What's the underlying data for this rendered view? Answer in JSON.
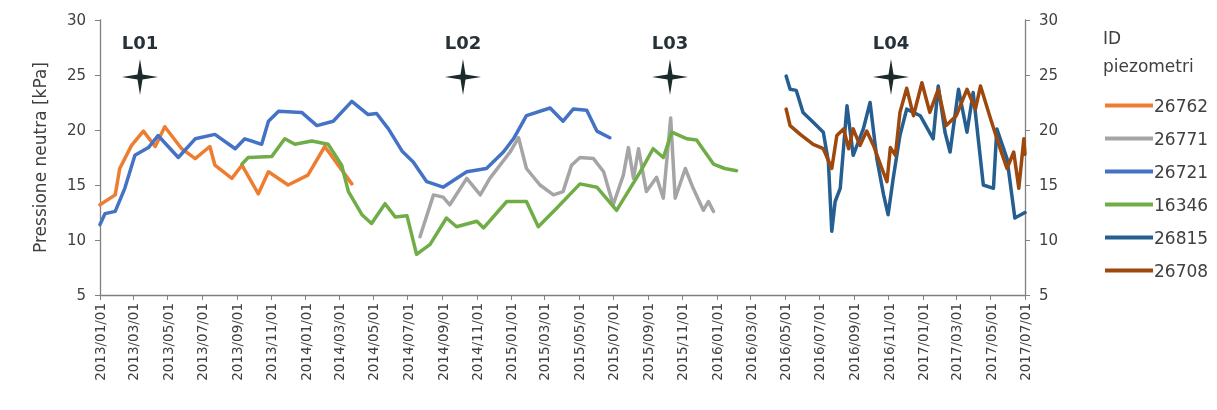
{
  "chart_data": {
    "type": "line",
    "ylabel": "Pressione neutra [kPa]",
    "legend_title": "ID piezometri",
    "legend": "right",
    "grid": false,
    "xlim": [
      "2013-01-01",
      "2017-07-01"
    ],
    "xticks": [
      {
        "value": "2013-01-01",
        "label": "2013/01/01"
      },
      {
        "value": "2013-03-01",
        "label": "2013/03/01"
      },
      {
        "value": "2013-05-01",
        "label": "2013/05/01"
      },
      {
        "value": "2013-07-01",
        "label": "2013/07/01"
      },
      {
        "value": "2013-09-01",
        "label": "2013/09/01"
      },
      {
        "value": "2013-11-01",
        "label": "2013/11/01"
      },
      {
        "value": "2014-01-01",
        "label": "2014/01/01"
      },
      {
        "value": "2014-03-01",
        "label": "2014/03/01"
      },
      {
        "value": "2014-05-01",
        "label": "2014/05/01"
      },
      {
        "value": "2014-07-01",
        "label": "2014/07/01"
      },
      {
        "value": "2014-09-01",
        "label": "2014/09/01"
      },
      {
        "value": "2014-11-01",
        "label": "2014/11/01"
      },
      {
        "value": "2015-01-01",
        "label": "2015/01/01"
      },
      {
        "value": "2015-03-01",
        "label": "2015/03/01"
      },
      {
        "value": "2015-05-01",
        "label": "2015/05/01"
      },
      {
        "value": "2015-07-01",
        "label": "2015/07/01"
      },
      {
        "value": "2015-09-01",
        "label": "2015/09/01"
      },
      {
        "value": "2015-11-01",
        "label": "2015/11/01"
      },
      {
        "value": "2016-01-01",
        "label": "2016/01/01"
      },
      {
        "value": "2016-03-01",
        "label": "2016/03/01"
      },
      {
        "value": "2016-05-01",
        "label": "2016/05/01"
      },
      {
        "value": "2016-07-01",
        "label": "2016/07/01"
      },
      {
        "value": "2016-09-01",
        "label": "2016/09/01"
      },
      {
        "value": "2016-11-01",
        "label": "2016/11/01"
      },
      {
        "value": "2017-01-01",
        "label": "2017/01/01"
      },
      {
        "value": "2017-03-01",
        "label": "2017/03/01"
      },
      {
        "value": "2017-05-01",
        "label": "2017/05/01"
      },
      {
        "value": "2017-07-01",
        "label": "2017/07/01"
      }
    ],
    "ylim": [
      5,
      30
    ],
    "yticks": [
      5,
      10,
      15,
      20,
      25,
      30
    ],
    "y2lim": [
      5,
      30
    ],
    "y2ticks": [
      5,
      10,
      15,
      20,
      25,
      30
    ],
    "annotations": [
      "L01",
      "L02",
      "L03",
      "L04"
    ],
    "series": [
      {
        "name": "26762",
        "color": "#ed7d31",
        "x": [
          "2013-01-01",
          "2013-01-28",
          "2013-02-05",
          "2013-02-26",
          "2013-03-19",
          "2013-04-09",
          "2013-04-26",
          "2013-05-26",
          "2013-06-19",
          "2013-07-15",
          "2013-07-24",
          "2013-08-23",
          "2013-09-10",
          "2013-10-09",
          "2013-10-27",
          "2013-12-01",
          "2014-01-05",
          "2014-02-04",
          "2014-02-28",
          "2014-03-24"
        ],
        "values": [
          13.2,
          14.1,
          16.5,
          18.6,
          19.9,
          18.5,
          20.3,
          18.3,
          17.4,
          18.5,
          16.8,
          15.6,
          16.8,
          14.2,
          16.2,
          15.0,
          15.9,
          18.5,
          16.8,
          15.1
        ]
      },
      {
        "name": "26771",
        "color": "#a5a5a5",
        "x": [
          "2014-07-23",
          "2014-08-16",
          "2014-09-02",
          "2014-09-14",
          "2014-10-14",
          "2014-11-07",
          "2014-11-24",
          "2014-12-30",
          "2015-01-14",
          "2015-01-28",
          "2015-02-21",
          "2015-03-17",
          "2015-04-03",
          "2015-04-18",
          "2015-05-03",
          "2015-05-27",
          "2015-06-14",
          "2015-07-01",
          "2015-07-19",
          "2015-07-28",
          "2015-08-06",
          "2015-08-15",
          "2015-08-29",
          "2015-09-16",
          "2015-09-28",
          "2015-10-11",
          "2015-10-19",
          "2015-11-06",
          "2015-11-20",
          "2015-12-08",
          "2015-12-17",
          "2015-12-26"
        ],
        "values": [
          10.3,
          14.1,
          13.9,
          13.2,
          15.6,
          14.1,
          15.6,
          18.0,
          19.3,
          16.5,
          15.0,
          14.1,
          14.4,
          16.8,
          17.5,
          17.4,
          16.2,
          13.2,
          15.9,
          18.4,
          15.6,
          18.3,
          14.4,
          15.7,
          13.8,
          21.1,
          13.8,
          16.5,
          14.7,
          12.7,
          13.5,
          12.6
        ]
      },
      {
        "name": "26721",
        "color": "#4472c4",
        "x": [
          "2013-01-01",
          "2013-01-10",
          "2013-01-28",
          "2013-02-14",
          "2013-03-04",
          "2013-03-28",
          "2013-04-14",
          "2013-05-20",
          "2013-06-19",
          "2013-07-24",
          "2013-08-29",
          "2013-09-15",
          "2013-10-15",
          "2013-10-27",
          "2013-11-14",
          "2013-12-25",
          "2014-01-21",
          "2014-02-19",
          "2014-03-24",
          "2014-04-22",
          "2014-05-07",
          "2014-05-28",
          "2014-06-21",
          "2014-07-11",
          "2014-08-04",
          "2014-09-02",
          "2014-10-14",
          "2014-11-18",
          "2014-12-18",
          "2015-01-05",
          "2015-01-28",
          "2015-03-11",
          "2015-04-03",
          "2015-04-21",
          "2015-05-15",
          "2015-06-02",
          "2015-06-25"
        ],
        "values": [
          11.4,
          12.4,
          12.6,
          14.7,
          17.7,
          18.4,
          19.5,
          17.5,
          19.2,
          19.6,
          18.3,
          19.2,
          18.7,
          20.8,
          21.7,
          21.6,
          20.4,
          20.8,
          22.6,
          21.4,
          21.5,
          20.1,
          18.1,
          17.1,
          15.3,
          14.8,
          16.2,
          16.5,
          18.0,
          19.2,
          21.3,
          22.0,
          20.8,
          21.9,
          21.8,
          19.9,
          19.3
        ]
      },
      {
        "name": "16346",
        "color": "#70ad47",
        "x": [
          "2013-09-10",
          "2013-09-21",
          "2013-11-02",
          "2013-11-25",
          "2013-12-13",
          "2014-01-12",
          "2014-02-10",
          "2014-03-06",
          "2014-03-18",
          "2014-04-11",
          "2014-04-28",
          "2014-05-22",
          "2014-06-09",
          "2014-06-30",
          "2014-07-17",
          "2014-08-10",
          "2014-09-08",
          "2014-09-26",
          "2014-11-01",
          "2014-11-13",
          "2014-12-24",
          "2015-01-28",
          "2015-02-18",
          "2015-03-23",
          "2015-05-03",
          "2015-06-02",
          "2015-07-07",
          "2015-08-18",
          "2015-09-10",
          "2015-09-28",
          "2015-10-13",
          "2015-11-09",
          "2015-11-26",
          "2015-12-26",
          "2016-01-15",
          "2016-02-05"
        ],
        "values": [
          16.9,
          17.5,
          17.6,
          19.2,
          18.7,
          19.0,
          18.7,
          16.8,
          14.4,
          12.3,
          11.5,
          13.3,
          12.1,
          12.2,
          8.7,
          9.6,
          12.0,
          11.2,
          11.7,
          11.1,
          13.5,
          13.5,
          11.2,
          12.9,
          15.1,
          14.8,
          12.7,
          16.2,
          18.3,
          17.5,
          19.8,
          19.2,
          19.1,
          16.9,
          16.5,
          16.3
        ]
      },
      {
        "name": "26815",
        "color": "#255e91",
        "x": [
          "2016-05-03",
          "2016-05-10",
          "2016-05-21",
          "2016-06-02",
          "2016-06-20",
          "2016-07-08",
          "2016-07-17",
          "2016-07-23",
          "2016-07-29",
          "2016-08-07",
          "2016-08-19",
          "2016-08-30",
          "2016-09-17",
          "2016-09-29",
          "2016-10-11",
          "2016-10-23",
          "2016-10-31",
          "2016-11-09",
          "2016-11-21",
          "2016-12-03",
          "2016-12-27",
          "2017-01-19",
          "2017-01-28",
          "2017-02-09",
          "2017-02-18",
          "2017-03-05",
          "2017-03-20",
          "2017-03-31",
          "2017-04-18",
          "2017-05-06",
          "2017-05-12",
          "2017-05-30",
          "2017-06-13",
          "2017-07-01"
        ],
        "values": [
          24.9,
          23.7,
          23.6,
          21.6,
          20.7,
          19.8,
          17.1,
          10.8,
          13.5,
          14.7,
          22.2,
          17.7,
          20.1,
          22.5,
          17.4,
          14.1,
          12.3,
          15.6,
          19.5,
          21.9,
          21.3,
          19.2,
          24.0,
          19.8,
          18.0,
          23.7,
          19.8,
          23.4,
          15.0,
          14.7,
          20.1,
          17.4,
          12.0,
          12.5
        ]
      },
      {
        "name": "26708",
        "color": "#9e480e",
        "x": [
          "2016-05-03",
          "2016-05-10",
          "2016-05-28",
          "2016-06-20",
          "2016-07-08",
          "2016-07-23",
          "2016-08-01",
          "2016-08-13",
          "2016-08-22",
          "2016-08-30",
          "2016-09-11",
          "2016-09-23",
          "2016-10-05",
          "2016-10-20",
          "2016-10-29",
          "2016-11-04",
          "2016-11-13",
          "2016-11-21",
          "2016-12-03",
          "2016-12-15",
          "2016-12-30",
          "2017-01-13",
          "2017-01-28",
          "2017-02-11",
          "2017-03-01",
          "2017-03-20",
          "2017-04-04",
          "2017-04-13",
          "2017-05-01",
          "2017-05-18",
          "2017-05-30",
          "2017-06-11",
          "2017-06-20",
          "2017-06-29",
          "2017-07-01"
        ],
        "values": [
          21.9,
          20.4,
          19.6,
          18.7,
          18.3,
          16.5,
          19.5,
          20.1,
          18.3,
          20.1,
          18.6,
          19.9,
          18.6,
          16.5,
          15.3,
          18.4,
          17.7,
          21.6,
          23.8,
          21.3,
          24.3,
          21.6,
          23.7,
          20.4,
          21.3,
          23.7,
          21.9,
          24.0,
          21.0,
          18.3,
          16.5,
          18.0,
          14.7,
          19.2,
          17.8
        ]
      }
    ]
  }
}
